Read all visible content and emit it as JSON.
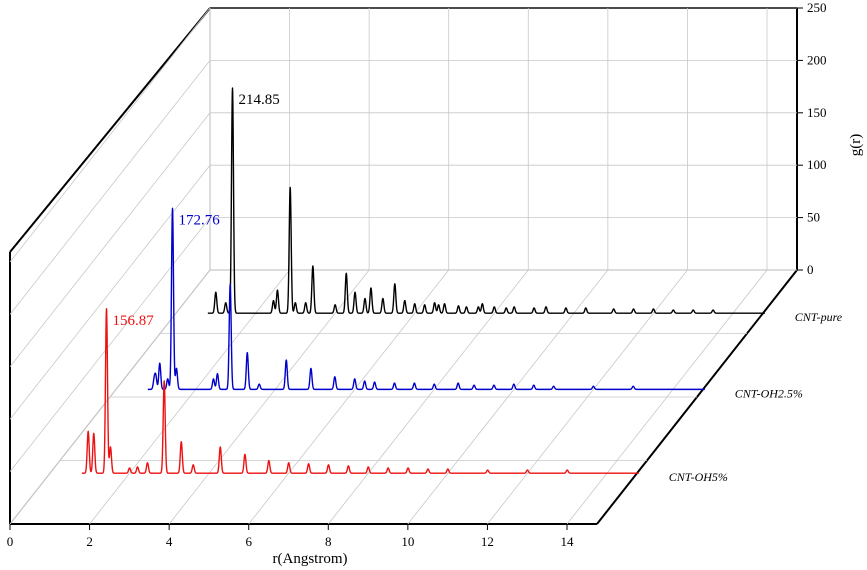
{
  "chart_data": {
    "type": "line",
    "style": "3d-waterfall",
    "xlabel": "r(Angstrom)",
    "ylabel": "g(r)",
    "xlim": [
      0,
      15
    ],
    "ylim": [
      0,
      250
    ],
    "x_ticks": [
      0,
      2,
      4,
      6,
      8,
      10,
      12,
      14
    ],
    "y_ticks": [
      0,
      50,
      100,
      150,
      200,
      250
    ],
    "series": [
      {
        "name": "CNT-pure",
        "color": "#000000",
        "peak_label": "214.85",
        "peak_label_color": "#000000",
        "peaks": [
          [
            1.0,
            20
          ],
          [
            1.25,
            10
          ],
          [
            1.42,
            214.85
          ],
          [
            2.45,
            12
          ],
          [
            2.55,
            22
          ],
          [
            2.87,
            120
          ],
          [
            3.0,
            10
          ],
          [
            3.26,
            10
          ],
          [
            3.44,
            45
          ],
          [
            4.0,
            8
          ],
          [
            4.28,
            38
          ],
          [
            4.5,
            20
          ],
          [
            4.75,
            14
          ],
          [
            4.9,
            24
          ],
          [
            5.2,
            14
          ],
          [
            5.5,
            28
          ],
          [
            5.75,
            12
          ],
          [
            6.0,
            9
          ],
          [
            6.25,
            8
          ],
          [
            6.5,
            10
          ],
          [
            6.6,
            8
          ],
          [
            6.75,
            9
          ],
          [
            7.1,
            7
          ],
          [
            7.3,
            6
          ],
          [
            7.6,
            6
          ],
          [
            7.7,
            9
          ],
          [
            8.0,
            6
          ],
          [
            8.3,
            5
          ],
          [
            8.5,
            6
          ],
          [
            9.0,
            5
          ],
          [
            9.3,
            6
          ],
          [
            9.8,
            5
          ],
          [
            10.3,
            5
          ],
          [
            11.0,
            4
          ],
          [
            11.5,
            4
          ],
          [
            12.0,
            4
          ],
          [
            12.5,
            3
          ],
          [
            13.0,
            3
          ],
          [
            13.5,
            3
          ]
        ]
      },
      {
        "name": "CNT-OH2.5%",
        "color": "#0000cc",
        "peak_label": "172.76",
        "peak_label_color": "#0000cc",
        "peaks": [
          [
            0.96,
            9
          ],
          [
            1.0,
            12
          ],
          [
            1.1,
            25
          ],
          [
            1.3,
            10
          ],
          [
            1.42,
            172.76
          ],
          [
            1.52,
            20
          ],
          [
            2.45,
            10
          ],
          [
            2.55,
            15
          ],
          [
            2.87,
            100
          ],
          [
            3.3,
            35
          ],
          [
            3.6,
            5
          ],
          [
            4.28,
            28
          ],
          [
            4.9,
            20
          ],
          [
            5.5,
            12
          ],
          [
            6.0,
            10
          ],
          [
            6.25,
            8
          ],
          [
            6.5,
            7
          ],
          [
            7.0,
            6
          ],
          [
            7.5,
            6
          ],
          [
            8.0,
            5
          ],
          [
            8.6,
            6
          ],
          [
            9.0,
            4
          ],
          [
            9.5,
            4
          ],
          [
            10.0,
            5
          ],
          [
            10.5,
            4
          ],
          [
            11.0,
            3
          ],
          [
            12.0,
            3
          ],
          [
            13.0,
            3
          ]
        ]
      },
      {
        "name": "CNT-OH5%",
        "color": "#ee1111",
        "peak_label": "156.87",
        "peak_label_color": "#ee1111",
        "peaks": [
          [
            0.96,
            40
          ],
          [
            1.1,
            38
          ],
          [
            1.42,
            156.87
          ],
          [
            1.52,
            25
          ],
          [
            2.0,
            5
          ],
          [
            2.2,
            6
          ],
          [
            2.45,
            10
          ],
          [
            2.87,
            88
          ],
          [
            3.3,
            30
          ],
          [
            3.6,
            8
          ],
          [
            4.28,
            25
          ],
          [
            4.9,
            18
          ],
          [
            5.5,
            12
          ],
          [
            6.0,
            10
          ],
          [
            6.5,
            9
          ],
          [
            7.0,
            8
          ],
          [
            7.5,
            7
          ],
          [
            8.0,
            6
          ],
          [
            8.5,
            5
          ],
          [
            9.0,
            5
          ],
          [
            9.5,
            4
          ],
          [
            10.0,
            4
          ],
          [
            11.0,
            3
          ],
          [
            12.0,
            3
          ],
          [
            13.0,
            3
          ]
        ]
      }
    ],
    "grid": true,
    "legend_placement": "right-floor"
  }
}
